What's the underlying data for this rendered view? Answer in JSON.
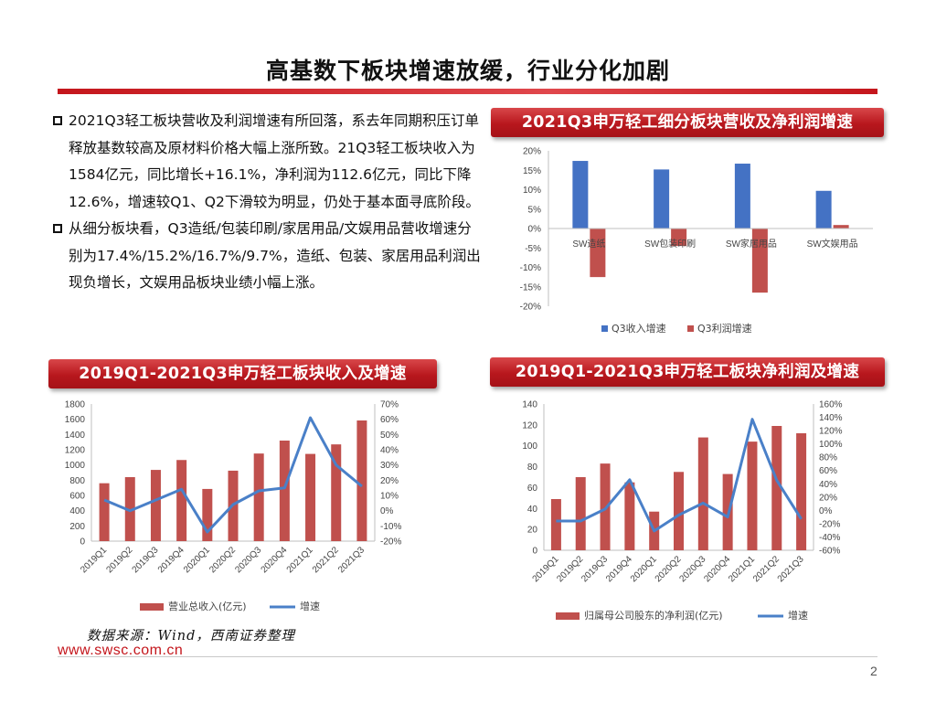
{
  "page": {
    "title": "高基数下板块增速放缓，行业分化加剧",
    "bullets": [
      "2021Q3轻工板块营收及利润增速有所回落，系去年同期积压订单释放基数较高及原材料价格大幅上涨所致。21Q3轻工板块收入为1584亿元，同比增长+16.1%，净利润为112.6亿元，同比下降12.6%，增速较Q1、Q2下滑较为明显，仍处于基本面寻底阶段。",
      "从细分板块看，Q3造纸/包装印刷/家居用品/文娱用品营收增速分别为17.4%/15.2%/16.7%/9.7%，造纸、包装、家居用品利润出现负增长，文娱用品板块业绩小幅上涨。"
    ],
    "source": "数据来源：Wind，西南证券整理",
    "website": "www.swsc.com.cn",
    "page_number": "2"
  },
  "colors": {
    "bar_blue": "#4472c4",
    "bar_red": "#c0504d",
    "line_blue": "#4a80c8",
    "ribbon_red": "#b8171d"
  },
  "chart_data": [
    {
      "id": "segment",
      "type": "bar",
      "title": "2021Q3申万轻工细分板块营收及净利润增速",
      "categories": [
        "SW造纸",
        "SW包装印刷",
        "SW家居用品",
        "SW文娱用品"
      ],
      "series": [
        {
          "name": "Q3收入增速",
          "values": [
            17.4,
            15.2,
            16.7,
            9.7
          ]
        },
        {
          "name": "Q3利润增速",
          "values": [
            -12.5,
            -4.5,
            -16.5,
            0.9
          ]
        }
      ],
      "ylim": [
        -20,
        20
      ],
      "yticks": [
        "20%",
        "15%",
        "10%",
        "5%",
        "0%",
        "-5%",
        "-10%",
        "-15%",
        "-20%"
      ],
      "legend": "bottom"
    },
    {
      "id": "revenue",
      "type": "bar",
      "title": "2019Q1-2021Q3申万轻工板块收入及增速",
      "categories": [
        "2019Q1",
        "2019Q2",
        "2019Q3",
        "2019Q4",
        "2020Q1",
        "2020Q2",
        "2020Q3",
        "2020Q4",
        "2021Q1",
        "2021Q2",
        "2021Q3"
      ],
      "series": [
        {
          "name": "营业总收入(亿元)",
          "type": "bar",
          "axis": "left",
          "values": [
            760,
            840,
            935,
            1065,
            685,
            925,
            1150,
            1320,
            1145,
            1270,
            1584
          ]
        },
        {
          "name": "增速",
          "type": "line",
          "axis": "right",
          "values": [
            7,
            0,
            7,
            14,
            -14,
            4,
            13,
            15,
            61,
            30,
            16
          ]
        }
      ],
      "ylim": [
        0,
        1800
      ],
      "y2lim": [
        -20,
        70
      ],
      "yticks": [
        "1800",
        "1600",
        "1400",
        "1200",
        "1000",
        "800",
        "600",
        "400",
        "200",
        "0"
      ],
      "y2ticks": [
        "70%",
        "60%",
        "50%",
        "40%",
        "30%",
        "20%",
        "10%",
        "0%",
        "-10%",
        "-20%"
      ],
      "legend": "bottom"
    },
    {
      "id": "profit",
      "type": "bar",
      "title": "2019Q1-2021Q3申万轻工板块净利润及增速",
      "categories": [
        "2019Q1",
        "2019Q2",
        "2019Q3",
        "2019Q4",
        "2020Q1",
        "2020Q2",
        "2020Q3",
        "2020Q4",
        "2021Q1",
        "2021Q2",
        "2021Q3"
      ],
      "series": [
        {
          "name": "归属母公司股东的净利润(亿元)",
          "type": "bar",
          "axis": "left",
          "values": [
            49,
            70,
            83,
            65,
            37,
            75,
            108,
            73,
            104,
            119,
            112
          ]
        },
        {
          "name": "增速",
          "type": "line",
          "axis": "right",
          "values": [
            -16,
            -16,
            2,
            46,
            -31,
            -7,
            11,
            -10,
            137,
            45,
            -13
          ]
        }
      ],
      "ylim": [
        0,
        140
      ],
      "y2lim": [
        -60,
        160
      ],
      "yticks": [
        "140",
        "120",
        "100",
        "80",
        "60",
        "40",
        "20",
        "0"
      ],
      "y2ticks": [
        "160%",
        "140%",
        "120%",
        "100%",
        "80%",
        "60%",
        "40%",
        "20%",
        "0%",
        "-20%",
        "-40%",
        "-60%"
      ],
      "legend": "bottom"
    }
  ]
}
